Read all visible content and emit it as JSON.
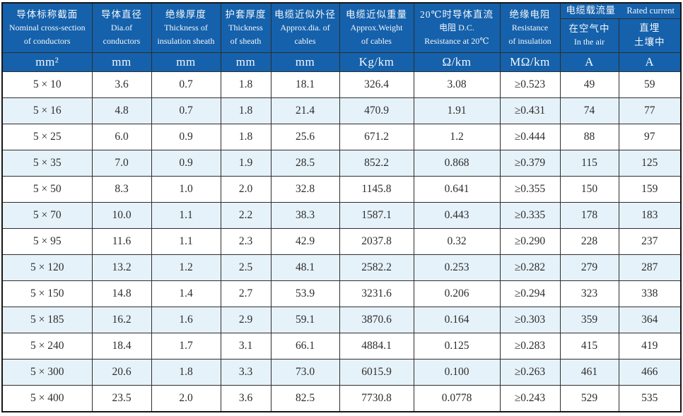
{
  "colors": {
    "header_blue": "#1561ab",
    "row_alternate_blue": "#e6f2fa",
    "row_white": "#ffffff",
    "grid_border": "#2e2e2e",
    "header_text": "#f4f8fc",
    "cell_text": "#2d2d2d"
  },
  "table": {
    "header": {
      "columns": [
        {
          "zh": "导体标称截面",
          "en_lines": [
            "Nominal cross-section",
            "of conductors"
          ],
          "unit": "mm²"
        },
        {
          "zh": "导体直径",
          "en_lines": [
            "Dia.of",
            "conductors"
          ],
          "unit": "mm"
        },
        {
          "zh": "绝缘厚度",
          "en_lines": [
            "Thickness of",
            "insulation sheath"
          ],
          "unit": "mm"
        },
        {
          "zh": "护套厚度",
          "en_lines": [
            "Thickness",
            "of sheath"
          ],
          "unit": "mm"
        },
        {
          "zh": "电缆近似外径",
          "en_lines": [
            "Approx.dia. of",
            "cables"
          ],
          "unit": "mm"
        },
        {
          "zh": "电缆近似重量",
          "en_lines": [
            "Approx.Weight",
            "of cables"
          ],
          "unit": "Kg/km"
        },
        {
          "zh": "20℃时导体直流",
          "en_lines": [
            "电阻 D.C.",
            "Resistance at 20℃"
          ],
          "unit": "Ω/km"
        },
        {
          "zh": "绝缘电阻",
          "en_lines": [
            "Resistance",
            "of insulation"
          ],
          "unit": "MΩ/km"
        }
      ],
      "current_group": {
        "zh": "电缆载流量",
        "en": "Rated current",
        "sub_air": {
          "line1": "在空气中",
          "line2": "In the air",
          "unit": "A"
        },
        "sub_buried": {
          "line1": "直埋",
          "line2": "土壤中",
          "unit": "A"
        }
      }
    },
    "rows": [
      [
        "5 × 10",
        "3.6",
        "0.7",
        "1.8",
        "18.1",
        "326.4",
        "3.08",
        "≥0.523",
        "49",
        "59"
      ],
      [
        "5 × 16",
        "4.8",
        "0.7",
        "1.8",
        "21.4",
        "470.9",
        "1.91",
        "≥0.431",
        "74",
        "77"
      ],
      [
        "5 × 25",
        "6.0",
        "0.9",
        "1.8",
        "25.6",
        "671.2",
        "1.2",
        "≥0.444",
        "88",
        "97"
      ],
      [
        "5 × 35",
        "7.0",
        "0.9",
        "1.9",
        "28.5",
        "852.2",
        "0.868",
        "≥0.379",
        "115",
        "125"
      ],
      [
        "5 × 50",
        "8.3",
        "1.0",
        "2.0",
        "32.8",
        "1145.8",
        "0.641",
        "≥0.355",
        "150",
        "159"
      ],
      [
        "5 × 70",
        "10.0",
        "1.1",
        "2.2",
        "38.3",
        "1587.1",
        "0.443",
        "≥0.335",
        "178",
        "183"
      ],
      [
        "5 × 95",
        "11.6",
        "1.1",
        "2.3",
        "42.9",
        "2037.8",
        "0.32",
        "≥0.290",
        "228",
        "237"
      ],
      [
        "5 × 120",
        "13.2",
        "1.2",
        "2.5",
        "48.1",
        "2582.2",
        "0.253",
        "≥0.282",
        "279",
        "287"
      ],
      [
        "5 × 150",
        "14.8",
        "1.4",
        "2.7",
        "53.9",
        "3231.6",
        "0.206",
        "≥0.294",
        "323",
        "338"
      ],
      [
        "5 × 185",
        "16.2",
        "1.6",
        "2.9",
        "59.1",
        "3870.6",
        "0.164",
        "≥0.303",
        "359",
        "364"
      ],
      [
        "5 × 240",
        "18.4",
        "1.7",
        "3.1",
        "66.1",
        "4884.1",
        "0.125",
        "≥0.283",
        "415",
        "419"
      ],
      [
        "5 × 300",
        "20.6",
        "1.8",
        "3.3",
        "73.0",
        "6015.9",
        "0.100",
        "≥0.263",
        "461",
        "466"
      ],
      [
        "5 × 400",
        "23.5",
        "2.0",
        "3.6",
        "82.5",
        "7730.8",
        "0.0778",
        "≥0.243",
        "529",
        "535"
      ]
    ]
  }
}
